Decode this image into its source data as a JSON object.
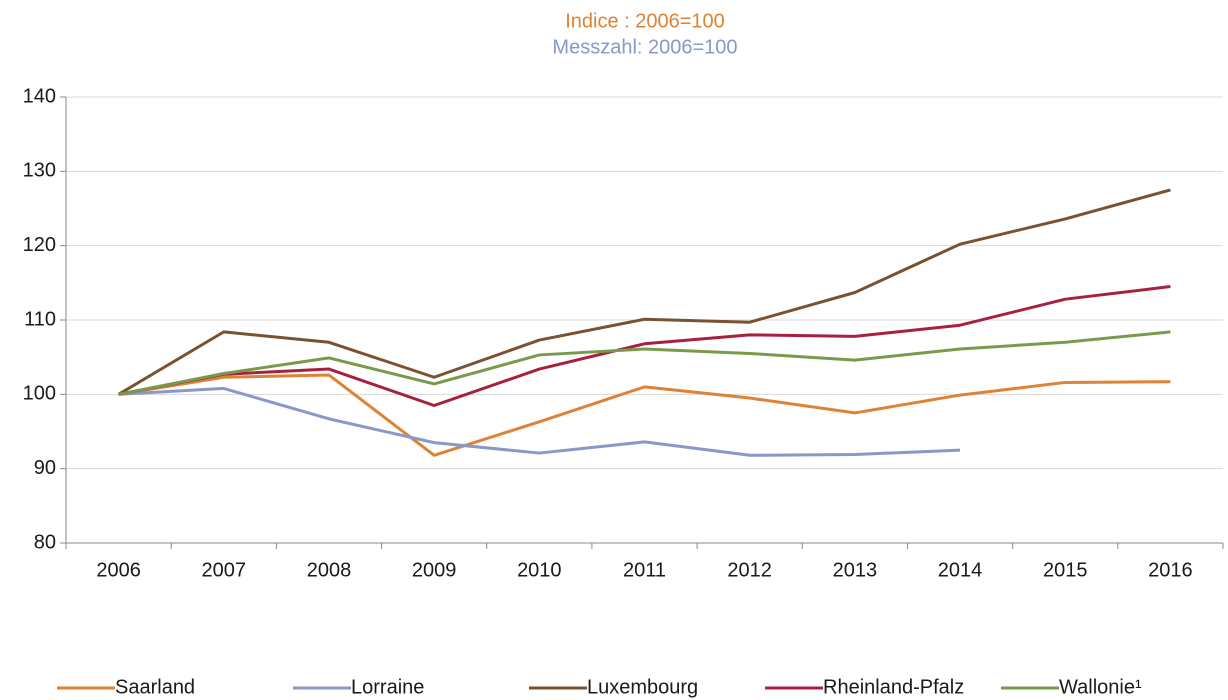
{
  "chart_data": {
    "type": "line",
    "title": "Indice : 2006=100",
    "title_color": "#de8235",
    "subtitle": "Messzahl: 2006=100",
    "subtitle_color": "#8a97c9",
    "categories": [
      "2006",
      "2007",
      "2008",
      "2009",
      "2010",
      "2011",
      "2012",
      "2013",
      "2014",
      "2015",
      "2016"
    ],
    "series": [
      {
        "name": "Saarland",
        "color": "#de8235",
        "values": [
          100,
          102.3,
          102.6,
          91.8,
          96.3,
          101,
          99.5,
          97.5,
          99.9,
          101.6,
          101.7
        ]
      },
      {
        "name": "Lorraine",
        "color": "#8a97c9",
        "values": [
          100,
          100.8,
          96.7,
          93.5,
          92.1,
          93.6,
          91.8,
          91.9,
          92.5,
          null,
          null
        ]
      },
      {
        "name": "Luxembourg",
        "color": "#7a5230",
        "values": [
          100,
          108.4,
          107,
          102.3,
          107.3,
          110.1,
          109.7,
          113.7,
          120.2,
          123.6,
          127.5
        ]
      },
      {
        "name": "Rheinland-Pfalz",
        "color": "#a8203f",
        "values": [
          100,
          102.7,
          103.4,
          98.5,
          103.4,
          106.8,
          108,
          107.8,
          109.3,
          112.8,
          114.5
        ]
      },
      {
        "name": "Wallonie¹",
        "color": "#7a9a4b",
        "values": [
          100,
          102.8,
          104.9,
          101.4,
          105.3,
          106.1,
          105.5,
          104.6,
          106.1,
          107,
          108.4
        ]
      }
    ],
    "ylim": [
      80,
      140
    ],
    "yticks": [
      80,
      90,
      100,
      110,
      120,
      130,
      140
    ],
    "grid": true,
    "legend": "bottom"
  }
}
